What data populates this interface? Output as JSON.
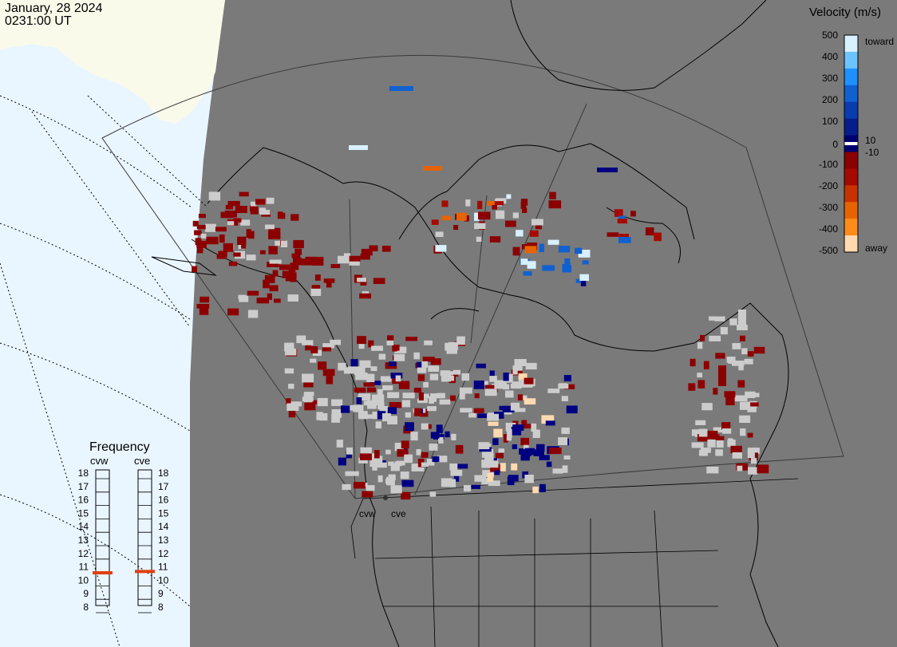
{
  "header": {
    "date": "January, 28 2024",
    "time": "0231:00 UT"
  },
  "colorbar": {
    "title": "Velocity (m/s)",
    "toward_label": "toward",
    "away_label": "away",
    "ticks": [
      "500",
      "400",
      "300",
      "200",
      "100",
      "10",
      "0",
      "-10",
      "-100",
      "-200",
      "-300",
      "-400",
      "-500"
    ],
    "colors": [
      "#d8f0ff",
      "#6cc4ff",
      "#1e90ff",
      "#1060d0",
      "#0a3cb0",
      "#061e8c",
      "#000070",
      "#8b0000",
      "#a50a00",
      "#c83200",
      "#e66400",
      "#ff8c1a",
      "#ffd9b0"
    ]
  },
  "frequency": {
    "title": "Frequency",
    "radars": [
      "cvw",
      "cve"
    ],
    "ticks": [
      "18",
      "17",
      "16",
      "15",
      "14",
      "13",
      "12",
      "11",
      "10",
      "9",
      "8"
    ],
    "cvw_mhz": 10.5,
    "cve_mhz": 10.6,
    "marker_color": "#e04010"
  },
  "map": {
    "site_labels": [
      "cvw",
      "cve"
    ],
    "land_color": "#7a7a7a",
    "ocean_color": "#eaf6ff",
    "ice_color": "#fafaea"
  }
}
